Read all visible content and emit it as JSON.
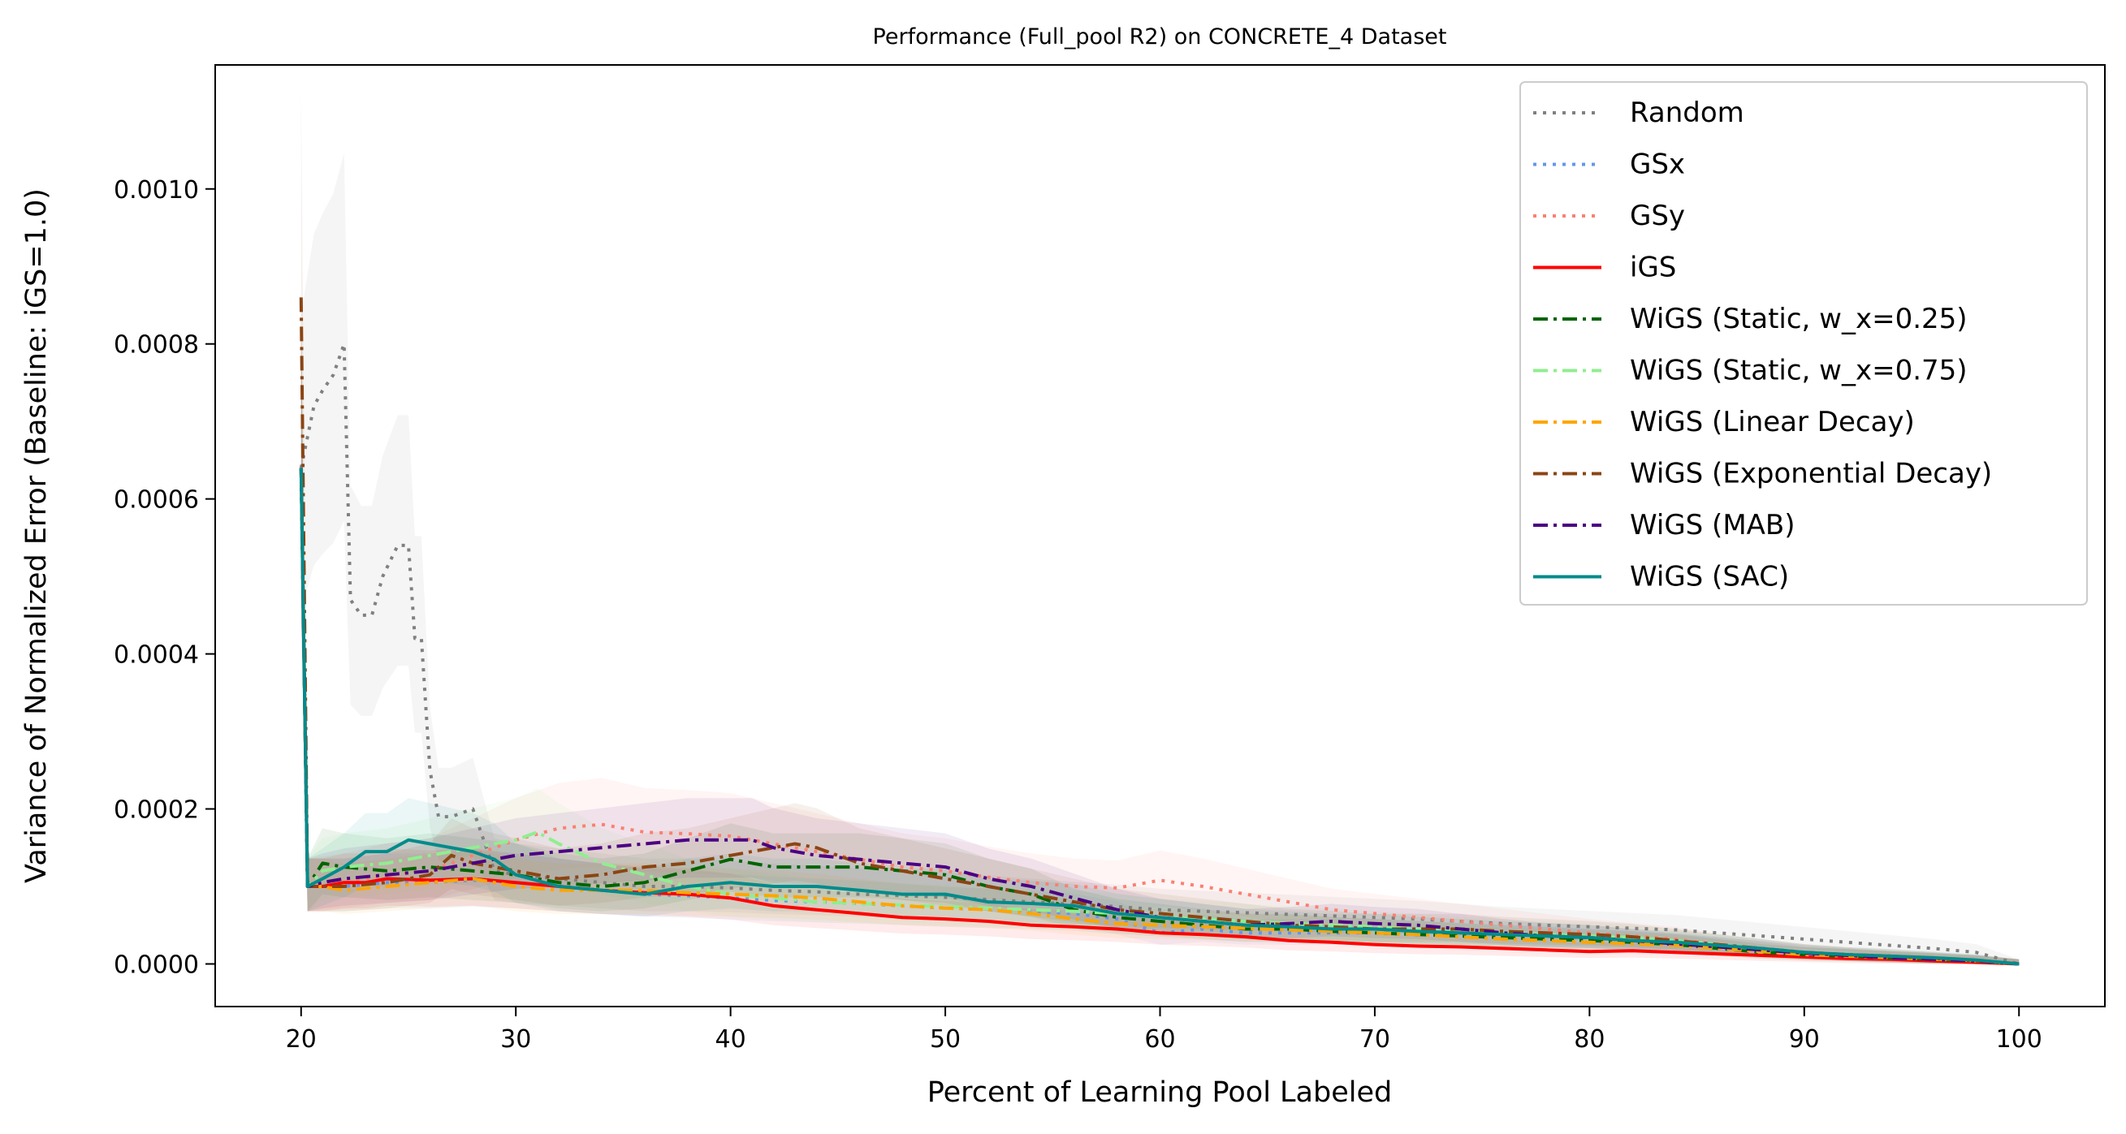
{
  "chart_data": {
    "type": "line",
    "title": "Performance (Full_pool R2) on CONCRETE_4 Dataset",
    "xlabel": "Percent of Learning Pool Labeled",
    "ylabel": "Variance of Normalized Error (Baseline: iGS=1.0)",
    "xlim": [
      16,
      104
    ],
    "ylim": [
      -5.5e-05,
      0.00116
    ],
    "xticks": [
      20,
      30,
      40,
      50,
      60,
      70,
      80,
      90,
      100
    ],
    "xtick_labels": [
      "20",
      "30",
      "40",
      "50",
      "60",
      "70",
      "80",
      "90",
      "100"
    ],
    "yticks": [
      0.0,
      0.0002,
      0.0004,
      0.0006,
      0.0008,
      0.001
    ],
    "ytick_labels": [
      "0.0000",
      "0.0002",
      "0.0004",
      "0.0006",
      "0.0008",
      "0.0010"
    ],
    "grid": false,
    "legend_position": "top-right",
    "series": [
      {
        "name": "Random",
        "color": "#808080",
        "style": "dotted",
        "band": true,
        "x": [
          20,
          20.3,
          20.6,
          21,
          21.5,
          22,
          22.3,
          22.8,
          23.3,
          23.8,
          24.5,
          25,
          25.3,
          25.6,
          26,
          26.4,
          27,
          28,
          29,
          30,
          32,
          34,
          36,
          38,
          40,
          42,
          44,
          46,
          48,
          50,
          52,
          54,
          56,
          58,
          60,
          62,
          64,
          66,
          68,
          70,
          72,
          74,
          76,
          78,
          80,
          82,
          84,
          86,
          88,
          90,
          92,
          94,
          96,
          98,
          100
        ],
        "y": [
          0.00064,
          0.00068,
          0.00072,
          0.00074,
          0.00076,
          0.0008,
          0.00047,
          0.00045,
          0.00045,
          0.0005,
          0.00054,
          0.00054,
          0.00042,
          0.00042,
          0.00025,
          0.00019,
          0.00019,
          0.0002,
          0.00012,
          0.000115,
          0.00011,
          0.000105,
          0.0001,
          0.0001,
          9.8e-05,
          9.5e-05,
          9.3e-05,
          9e-05,
          8.8e-05,
          8.6e-05,
          8.3e-05,
          8e-05,
          7.7e-05,
          7.4e-05,
          7e-05,
          6.8e-05,
          6.6e-05,
          6.4e-05,
          6.2e-05,
          6e-05,
          5.8e-05,
          5.5e-05,
          5.2e-05,
          5e-05,
          4.8e-05,
          4.6e-05,
          4.4e-05,
          4e-05,
          3.6e-05,
          3.2e-05,
          2.8e-05,
          2.4e-05,
          2e-05,
          1.5e-05,
          0.0
        ]
      },
      {
        "name": "GSx",
        "color": "#6495ed",
        "style": "dotted",
        "band": true,
        "x": [
          20,
          20.3,
          22,
          24,
          26,
          28,
          30,
          32,
          34,
          36,
          38,
          40,
          42,
          44,
          46,
          48,
          50,
          52,
          54,
          56,
          58,
          60,
          62,
          64,
          66,
          68,
          70,
          72,
          74,
          76,
          78,
          80,
          82,
          84,
          86,
          88,
          90,
          92,
          94,
          96,
          98,
          100
        ],
        "y": [
          0.00064,
          0.0001,
          0.0001,
          0.000105,
          0.000105,
          0.000108,
          0.000105,
          0.0001,
          9.5e-05,
          9e-05,
          8.8e-05,
          8.5e-05,
          8.2e-05,
          8e-05,
          7.8e-05,
          7.5e-05,
          7.2e-05,
          7e-05,
          6.8e-05,
          6.5e-05,
          5.8e-05,
          4e-05,
          4.5e-05,
          4e-05,
          4e-05,
          4e-05,
          4e-05,
          3.8e-05,
          3.6e-05,
          3.4e-05,
          3.3e-05,
          3e-05,
          2.8e-05,
          2.5e-05,
          2.2e-05,
          1.8e-05,
          1.2e-05,
          1e-05,
          8e-06,
          7e-06,
          5e-06,
          0.0
        ]
      },
      {
        "name": "GSy",
        "color": "#fa8072",
        "style": "dotted",
        "band": true,
        "x": [
          20,
          20.3,
          22,
          24,
          26,
          28,
          30,
          32,
          34,
          36,
          38,
          40,
          42,
          44,
          46,
          48,
          50,
          52,
          54,
          56,
          58,
          60,
          62,
          64,
          66,
          68,
          70,
          72,
          74,
          76,
          78,
          80,
          82,
          84,
          86,
          88,
          90,
          92,
          94,
          96,
          98,
          100
        ],
        "y": [
          0.00064,
          0.0001,
          0.000105,
          0.000115,
          0.00012,
          0.00014,
          0.00016,
          0.000175,
          0.00018,
          0.00017,
          0.000168,
          0.000165,
          0.000155,
          0.000145,
          0.000135,
          0.000125,
          0.00012,
          0.000112,
          0.000105,
          0.0001,
          9.8e-05,
          0.000108,
          0.0001,
          9e-05,
          8e-05,
          7e-05,
          6.5e-05,
          6e-05,
          5.5e-05,
          5e-05,
          4.5e-05,
          4e-05,
          3.6e-05,
          3.2e-05,
          2.5e-05,
          2e-05,
          1.5e-05,
          1.2e-05,
          9e-06,
          7e-06,
          4e-06,
          0.0
        ]
      },
      {
        "name": "iGS",
        "color": "#ff0000",
        "style": "solid",
        "band": true,
        "x": [
          20,
          20.3,
          21,
          22,
          23,
          24,
          26,
          28,
          30,
          32,
          34,
          36,
          38,
          40,
          42,
          44,
          46,
          48,
          50,
          52,
          54,
          56,
          58,
          60,
          62,
          64,
          66,
          68,
          70,
          72,
          74,
          76,
          78,
          80,
          82,
          84,
          86,
          88,
          90,
          92,
          94,
          96,
          98,
          100
        ],
        "y": [
          0.00064,
          0.0001,
          0.0001,
          0.000105,
          0.000105,
          0.00011,
          0.000108,
          0.00011,
          0.000105,
          0.0001,
          9.5e-05,
          9.2e-05,
          9e-05,
          8.5e-05,
          7.5e-05,
          7e-05,
          6.5e-05,
          6e-05,
          5.8e-05,
          5.5e-05,
          5e-05,
          4.8e-05,
          4.5e-05,
          4e-05,
          3.8e-05,
          3.5e-05,
          3e-05,
          2.8e-05,
          2.5e-05,
          2.3e-05,
          2.2e-05,
          2e-05,
          1.8e-05,
          1.6e-05,
          1.7e-05,
          1.5e-05,
          1.3e-05,
          1.1e-05,
          9e-06,
          7e-06,
          6e-06,
          4e-06,
          2e-06,
          0.0
        ]
      },
      {
        "name": "WiGS (Static, w_x=0.25)",
        "color": "#006400",
        "style": "dashdot",
        "band": true,
        "x": [
          20,
          20.3,
          21,
          22,
          24,
          26,
          28,
          30,
          32,
          34,
          36,
          38,
          40,
          42,
          44,
          46,
          48,
          50,
          52,
          54,
          56,
          58,
          60,
          62,
          64,
          66,
          68,
          70,
          72,
          74,
          76,
          78,
          80,
          82,
          84,
          86,
          88,
          90,
          92,
          94,
          96,
          98,
          100
        ],
        "y": [
          0.00064,
          0.0001,
          0.00013,
          0.000125,
          0.00012,
          0.000125,
          0.00012,
          0.000115,
          0.000105,
          0.0001,
          0.000105,
          0.00012,
          0.000135,
          0.000125,
          0.000125,
          0.000125,
          0.00012,
          0.000115,
          0.0001,
          9e-05,
          7e-05,
          6e-05,
          5.5e-05,
          5e-05,
          4.5e-05,
          4.5e-05,
          4.2e-05,
          4e-05,
          3.8e-05,
          3.6e-05,
          3.4e-05,
          3.2e-05,
          3e-05,
          2.8e-05,
          2.5e-05,
          2e-05,
          1.5e-05,
          1.2e-05,
          1e-05,
          8e-06,
          6e-06,
          4e-06,
          0.0
        ]
      },
      {
        "name": "WiGS (Static, w_x=0.75)",
        "color": "#90ee90",
        "style": "dashdot",
        "band": true,
        "x": [
          20,
          20.3,
          21,
          22,
          24,
          26,
          28,
          30,
          31,
          32,
          34,
          36,
          38,
          40,
          42,
          44,
          46,
          48,
          50,
          52,
          54,
          56,
          58,
          60,
          62,
          64,
          66,
          68,
          70,
          72,
          74,
          76,
          78,
          80,
          82,
          84,
          86,
          88,
          90,
          92,
          94,
          96,
          98,
          100
        ],
        "y": [
          0.00064,
          0.0001,
          0.00012,
          0.000125,
          0.00013,
          0.00014,
          0.00015,
          0.00016,
          0.00017,
          0.000155,
          0.00013,
          0.000115,
          0.0001,
          9e-05,
          8.5e-05,
          8e-05,
          7.8e-05,
          7.6e-05,
          7.4e-05,
          7.2e-05,
          7e-05,
          6.8e-05,
          6.5e-05,
          6e-05,
          5.8e-05,
          5.5e-05,
          5.2e-05,
          5e-05,
          4.8e-05,
          4.5e-05,
          4.2e-05,
          4e-05,
          3.8e-05,
          3.6e-05,
          3.4e-05,
          3e-05,
          2.5e-05,
          2e-05,
          1.5e-05,
          1.2e-05,
          1e-05,
          7e-06,
          4e-06,
          0.0
        ]
      },
      {
        "name": "WiGS (Linear Decay)",
        "color": "#ffa500",
        "style": "dashdot",
        "band": true,
        "x": [
          20,
          20.3,
          21,
          22,
          24,
          26,
          28,
          30,
          32,
          34,
          36,
          38,
          40,
          42,
          44,
          46,
          48,
          50,
          52,
          54,
          56,
          58,
          60,
          62,
          64,
          66,
          68,
          70,
          72,
          74,
          76,
          78,
          80,
          82,
          84,
          86,
          88,
          90,
          92,
          94,
          96,
          98,
          100
        ],
        "y": [
          0.00064,
          0.0001,
          0.0001,
          9.5e-05,
          0.0001,
          0.000105,
          0.00011,
          0.0001,
          9.5e-05,
          9.5e-05,
          9.5e-05,
          9.2e-05,
          9e-05,
          8.8e-05,
          8.5e-05,
          8e-05,
          7.5e-05,
          7.2e-05,
          7e-05,
          6.5e-05,
          5.8e-05,
          5.2e-05,
          5e-05,
          4.8e-05,
          4.6e-05,
          4.4e-05,
          4.2e-05,
          4e-05,
          3.8e-05,
          3.5e-05,
          3.2e-05,
          3e-05,
          2.8e-05,
          2.6e-05,
          2.4e-05,
          2e-05,
          1.6e-05,
          1.2e-05,
          1e-05,
          8e-06,
          6e-06,
          4e-06,
          0.0
        ]
      },
      {
        "name": "WiGS (Exponential Decay)",
        "color": "#8b4513",
        "style": "dashdot",
        "band": true,
        "x": [
          20,
          20.3,
          21,
          22,
          24,
          26,
          27,
          28,
          30,
          32,
          34,
          36,
          38,
          40,
          42,
          43,
          44,
          46,
          48,
          50,
          52,
          54,
          56,
          58,
          60,
          62,
          64,
          66,
          68,
          70,
          72,
          74,
          76,
          78,
          80,
          82,
          84,
          86,
          88,
          90,
          92,
          94,
          96,
          98,
          100
        ],
        "y": [
          0.00086,
          0.0001,
          0.0001,
          0.0001,
          0.000105,
          0.000115,
          0.00014,
          0.00013,
          0.00012,
          0.00011,
          0.000115,
          0.000125,
          0.00013,
          0.00014,
          0.00015,
          0.000155,
          0.00015,
          0.00013,
          0.00012,
          0.00011,
          0.0001,
          9e-05,
          8e-05,
          7e-05,
          6.5e-05,
          6e-05,
          5.5e-05,
          5e-05,
          4.8e-05,
          4.5e-05,
          4.5e-05,
          4.5e-05,
          4.2e-05,
          4e-05,
          3.8e-05,
          3.5e-05,
          3e-05,
          2.5e-05,
          2e-05,
          1.5e-05,
          1.2e-05,
          1e-05,
          7e-06,
          4e-06,
          0.0
        ]
      },
      {
        "name": "WiGS (MAB)",
        "color": "#4b0082",
        "style": "dashdot",
        "band": true,
        "x": [
          20,
          20.3,
          21,
          22,
          24,
          26,
          28,
          30,
          32,
          34,
          36,
          38,
          40,
          41,
          42,
          44,
          46,
          48,
          50,
          52,
          54,
          56,
          58,
          60,
          62,
          64,
          66,
          68,
          70,
          72,
          74,
          76,
          78,
          80,
          82,
          84,
          86,
          88,
          90,
          92,
          94,
          96,
          98,
          100
        ],
        "y": [
          0.00064,
          0.0001,
          0.000105,
          0.00011,
          0.000115,
          0.00012,
          0.00013,
          0.00014,
          0.000145,
          0.00015,
          0.000155,
          0.00016,
          0.00016,
          0.00016,
          0.00015,
          0.00014,
          0.000135,
          0.00013,
          0.000125,
          0.00011,
          0.0001,
          8.5e-05,
          7e-05,
          6e-05,
          5.5e-05,
          5e-05,
          5.2e-05,
          5.5e-05,
          5.2e-05,
          5e-05,
          4.5e-05,
          4e-05,
          3.6e-05,
          3.4e-05,
          3e-05,
          2.6e-05,
          2.2e-05,
          1.8e-05,
          1.4e-05,
          1.1e-05,
          8e-06,
          6e-06,
          4e-06,
          0.0
        ]
      },
      {
        "name": "WiGS (SAC)",
        "color": "#008b8b",
        "style": "solid",
        "band": true,
        "x": [
          20,
          20.3,
          21,
          22,
          23,
          24,
          25,
          26,
          27,
          28,
          29,
          30,
          32,
          34,
          36,
          38,
          40,
          42,
          44,
          46,
          48,
          50,
          52,
          54,
          56,
          58,
          60,
          62,
          64,
          66,
          68,
          70,
          72,
          74,
          76,
          78,
          80,
          82,
          84,
          86,
          88,
          90,
          92,
          94,
          96,
          98,
          100
        ],
        "y": [
          0.00064,
          0.0001,
          0.00011,
          0.000125,
          0.000145,
          0.000145,
          0.00016,
          0.000155,
          0.00015,
          0.000145,
          0.000135,
          0.000115,
          0.0001,
          9.5e-05,
          9e-05,
          0.0001,
          0.000105,
          0.0001,
          0.0001,
          9.5e-05,
          9e-05,
          9e-05,
          8e-05,
          7.8e-05,
          7.5e-05,
          6.5e-05,
          6e-05,
          5.5e-05,
          5e-05,
          4.8e-05,
          4.5e-05,
          4.5e-05,
          4.2e-05,
          4e-05,
          3.8e-05,
          3.6e-05,
          3.4e-05,
          3e-05,
          2.8e-05,
          2.4e-05,
          2e-05,
          1.5e-05,
          1.2e-05,
          1e-05,
          8e-06,
          5e-06,
          0.0
        ]
      }
    ]
  }
}
